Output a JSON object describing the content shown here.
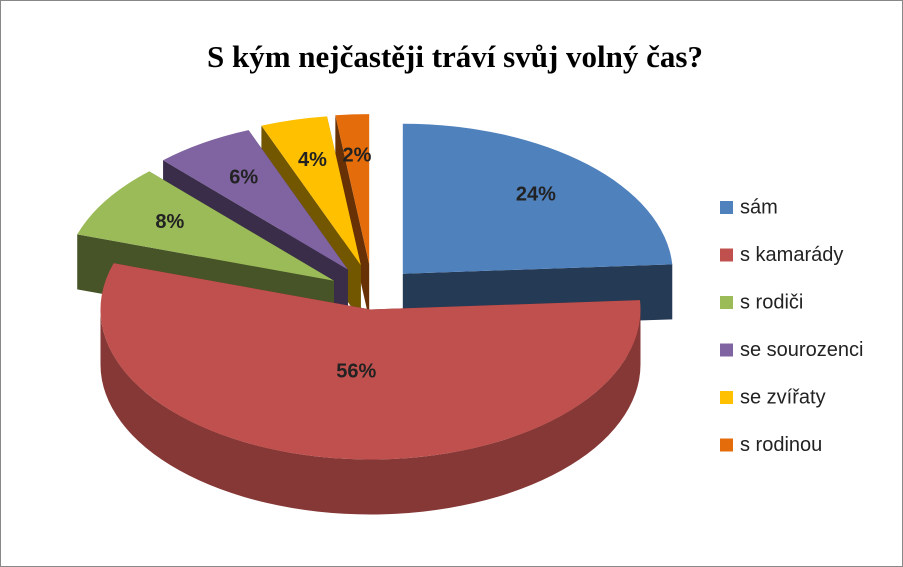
{
  "chart_data": {
    "type": "pie",
    "title": "S kým nejčastěji tráví svůj volný čas?",
    "categories": [
      "sám",
      "s kamarády",
      "s rodiči",
      "se sourozenci",
      "se zvířaty",
      "s rodinou"
    ],
    "values": [
      24,
      56,
      8,
      6,
      4,
      2
    ],
    "value_labels": [
      "24%",
      "56%",
      "8%",
      "6%",
      "4%",
      "2%"
    ],
    "colors": [
      "#4f81bd",
      "#c0504d",
      "#9bbb59",
      "#8064a2",
      "#ffc000",
      "#e46c0a"
    ],
    "legend": "right"
  }
}
